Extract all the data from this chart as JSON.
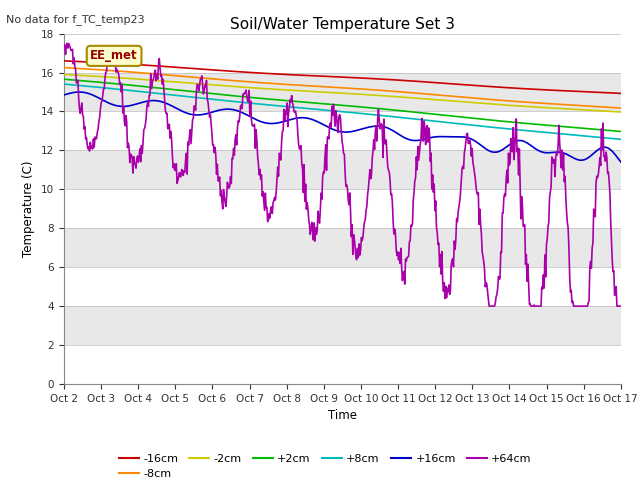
{
  "title": "Soil/Water Temperature Set 3",
  "subtitle": "No data for f_TC_temp23",
  "xlabel": "Time",
  "ylabel": "Temperature (C)",
  "ylim": [
    0,
    18
  ],
  "yticks": [
    0,
    2,
    4,
    6,
    8,
    10,
    12,
    14,
    16,
    18
  ],
  "x_labels": [
    "Oct 2",
    "Oct 3",
    "Oct 4",
    "Oct 5",
    "Oct 6",
    "Oct 7",
    "Oct 8",
    "Oct 9",
    "Oct 10",
    "Oct 11",
    "Oct 12",
    "Oct 13",
    "Oct 14",
    "Oct 15",
    "Oct 16",
    "Oct 17"
  ],
  "legend_label": "EE_met",
  "series_colors": {
    "-16cm": "#cc0000",
    "-8cm": "#ff8800",
    "-2cm": "#cccc00",
    "+2cm": "#00bb00",
    "+8cm": "#00bbbb",
    "+16cm": "#0000cc",
    "+64cm": "#aa00aa"
  },
  "lw": 1.2,
  "bg_white": "#ffffff",
  "bg_light_grey": "#e8e8e8",
  "bg_mid_grey": "#d8d8d8"
}
